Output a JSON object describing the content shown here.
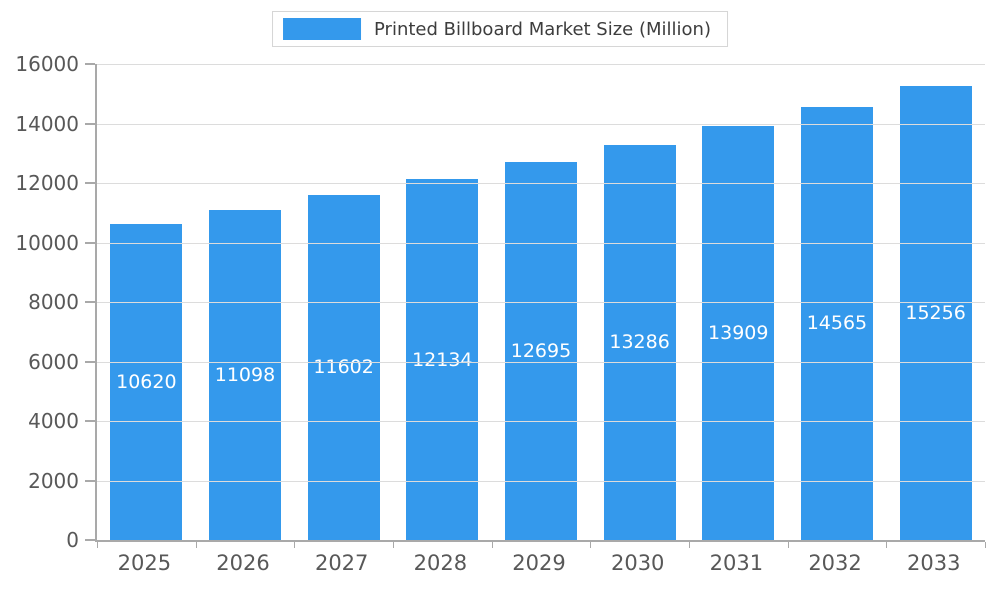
{
  "chart_data": {
    "type": "bar",
    "title": "Printed Billboard Market Size (Million)",
    "categories": [
      "2025",
      "2026",
      "2027",
      "2028",
      "2029",
      "2030",
      "2031",
      "2032",
      "2033"
    ],
    "values": [
      10620,
      11098,
      11602,
      12134,
      12695,
      13286,
      13909,
      14565,
      15256
    ],
    "xlabel": "",
    "ylabel": "",
    "ylim": [
      0,
      16000
    ],
    "y_ticks": [
      0,
      2000,
      4000,
      6000,
      8000,
      10000,
      12000,
      14000,
      16000
    ],
    "grid": "horizontal",
    "legend_position": "top-center",
    "bar_color": "#3499ec",
    "bar_label_color": "#ffffff",
    "axis_label_color": "#585858",
    "grid_color": "#dcdcdc",
    "axis_line_color": "#a9a9a9",
    "background": "#ffffff"
  }
}
